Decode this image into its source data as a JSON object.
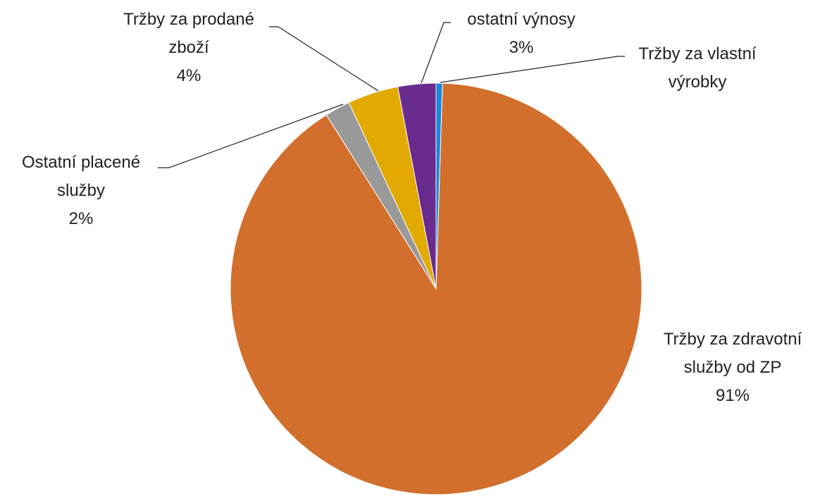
{
  "chart_data": {
    "type": "pie",
    "categories": [
      "Tržby za vlastní výrobky",
      "Tržby za zdravotní služby od ZP",
      "Ostatní placené služby",
      "Tržby za prodané zboží",
      "ostatní výnosy"
    ],
    "values": [
      0.5,
      91,
      2,
      4,
      3
    ],
    "value_labels": [
      null,
      "91%",
      "2%",
      "4%",
      "3%"
    ],
    "colors": [
      "#1a86d8",
      "#d36f2c",
      "#999999",
      "#e2a900",
      "#6a2b8e"
    ]
  }
}
